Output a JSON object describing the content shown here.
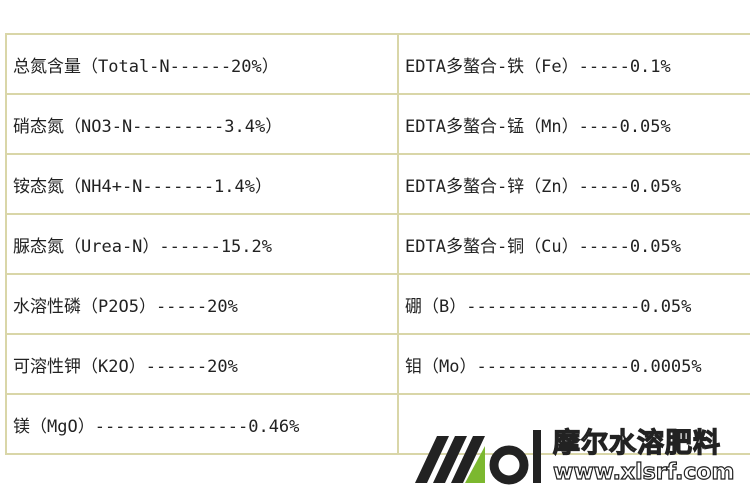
{
  "rows": [
    {
      "left": "总氮含量（Total-N------20%）",
      "right": "EDTA多螯合-铁（Fe）-----0.1%"
    },
    {
      "left": "硝态氮（NO3-N---------3.4%）",
      "right": "EDTA多螯合-锰（Mn）----0.05%"
    },
    {
      "left": "铵态氮（NH4+-N-------1.4%）",
      "right": "EDTA多螯合-锌（Zn）-----0.05%"
    },
    {
      "left": "脲态氮（Urea-N）------15.2%",
      "right": "EDTA多螯合-铜（Cu）-----0.05%"
    },
    {
      "left": "水溶性磷（P2O5）-----20%",
      "right": "硼（B）-----------------0.05%"
    },
    {
      "left": "可溶性钾（K2O）------20%",
      "right": "钼（Mo）---------------0.0005%"
    },
    {
      "left": "镁（MgO）---------------0.46%",
      "right": ""
    }
  ],
  "watermark": {
    "brand_cn": "摩尔水溶肥料",
    "url": "www.xlsrf.com",
    "logo_text": "mol",
    "accent": "#7cb82f"
  }
}
